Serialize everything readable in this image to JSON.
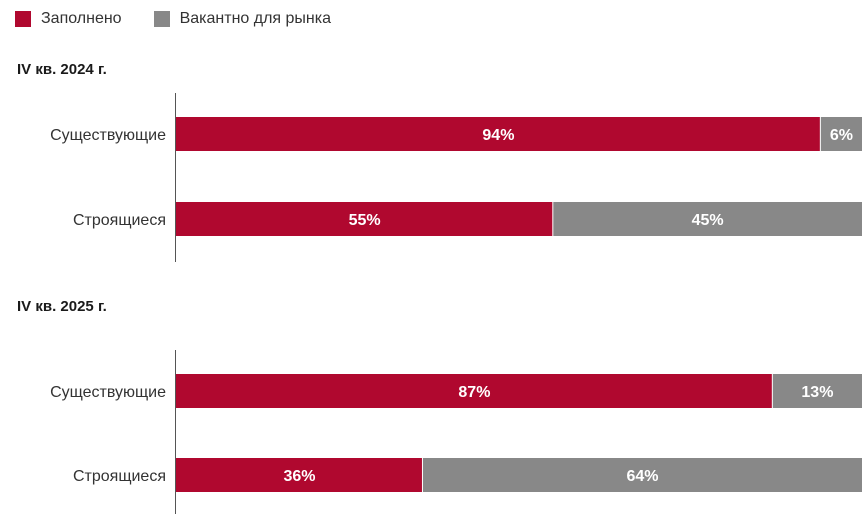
{
  "legend": [
    {
      "label": "Заполнено",
      "color": "#B0082F"
    },
    {
      "label": "Вакантно для рынка",
      "color": "#888888"
    }
  ],
  "chart_data": [
    {
      "type": "bar",
      "orientation": "horizontal",
      "stacked": true,
      "title": "IV кв. 2024 г.",
      "categories": [
        "Существующие",
        "Строящиеся"
      ],
      "series": [
        {
          "name": "Заполнено",
          "values": [
            94,
            55
          ],
          "color": "#B0082F"
        },
        {
          "name": "Вакантно для рынка",
          "values": [
            6,
            45
          ],
          "color": "#888888"
        }
      ],
      "value_suffix": "%",
      "xlim": [
        0,
        100
      ],
      "grid": false,
      "legend_position": "top-left"
    },
    {
      "type": "bar",
      "orientation": "horizontal",
      "stacked": true,
      "title": "IV кв. 2025 г.",
      "categories": [
        "Существующие",
        "Строящиеся"
      ],
      "series": [
        {
          "name": "Заполнено",
          "values": [
            87,
            36
          ],
          "color": "#B0082F"
        },
        {
          "name": "Вакантно для рынка",
          "values": [
            13,
            64
          ],
          "color": "#888888"
        }
      ],
      "value_suffix": "%",
      "xlim": [
        0,
        100
      ],
      "grid": false,
      "legend_position": "top-left"
    }
  ]
}
